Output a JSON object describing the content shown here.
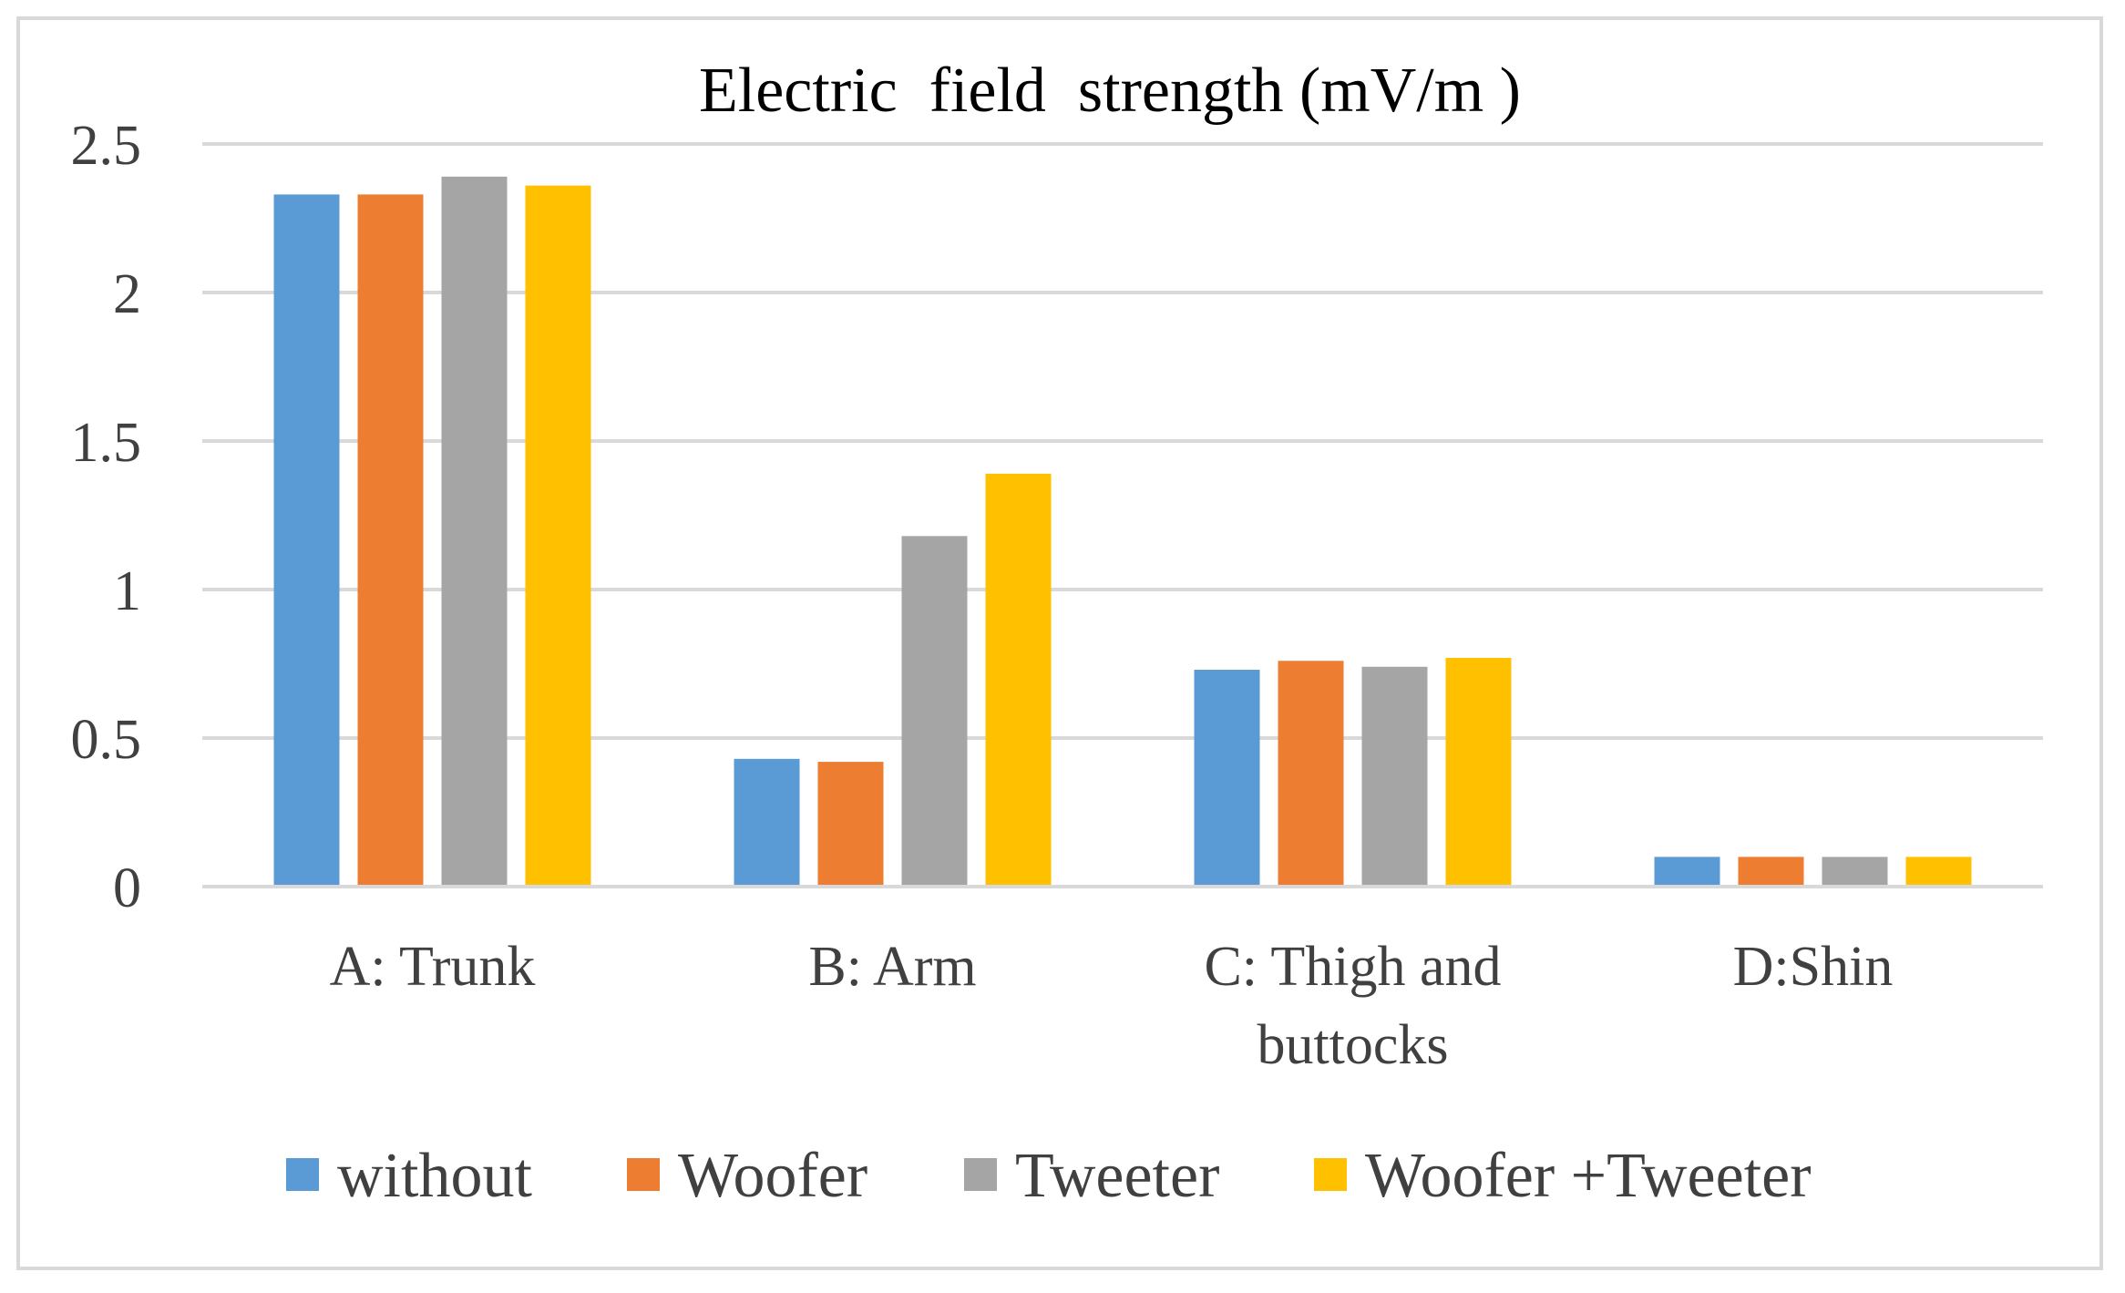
{
  "chart_data": {
    "type": "bar",
    "title": "Electric  field  strength (mV/m )",
    "xlabel": "",
    "ylabel": "",
    "ylim": [
      0,
      2.5
    ],
    "yticks": [
      0,
      0.5,
      1,
      1.5,
      2,
      2.5
    ],
    "ytick_labels": [
      "0",
      "0.5",
      "1",
      "1.5",
      "2",
      "2.5"
    ],
    "grid": true,
    "legend_position": "bottom",
    "categories": [
      [
        "A: Trunk"
      ],
      [
        "B: Arm"
      ],
      [
        "C: Thigh and",
        "buttocks"
      ],
      [
        "D:Shin"
      ]
    ],
    "series": [
      {
        "name": "without",
        "color": "#5b9bd5",
        "values": [
          2.33,
          0.43,
          0.73,
          0.1
        ]
      },
      {
        "name": "Woofer",
        "color": "#ed7d31",
        "values": [
          2.33,
          0.42,
          0.76,
          0.1
        ]
      },
      {
        "name": "Tweeter",
        "color": "#a5a5a5",
        "values": [
          2.39,
          1.18,
          0.74,
          0.1
        ]
      },
      {
        "name": "Woofer +Tweeter",
        "color": "#ffc000",
        "values": [
          2.36,
          1.39,
          0.77,
          0.1
        ]
      }
    ]
  }
}
